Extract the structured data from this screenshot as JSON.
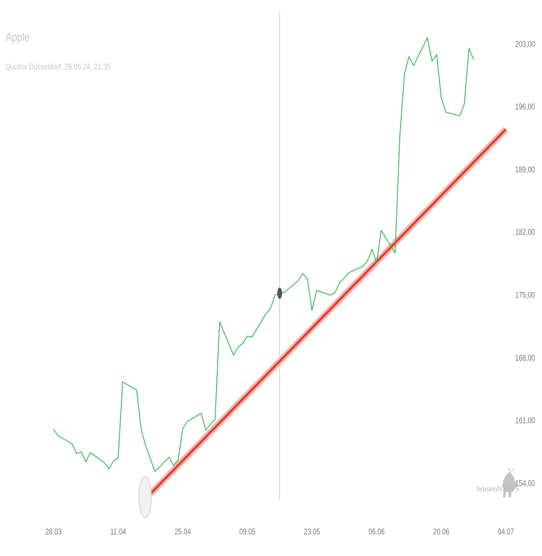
{
  "header": {
    "title": "Apple",
    "subtitle": "Quotrix Düsseldorf, 26.06.24, 21:35"
  },
  "logo": {
    "text": "börsenNEWS",
    "icon": "bull-icon"
  },
  "colors": {
    "price_line": "#2db34a",
    "trend_line": "#e8352a",
    "trend_glow": "#f8b4ae",
    "crosshair": "#cccccc",
    "axis_text": "#777777"
  },
  "chart_data": {
    "type": "line",
    "title": "Apple",
    "x_ticks": [
      "28.03",
      "11.04",
      "25.04",
      "09.05",
      "23.05",
      "06.06",
      "20.06",
      "04.07"
    ],
    "y_ticks": [
      "154,00",
      "161,00",
      "168,00",
      "175,00",
      "182,00",
      "189,00",
      "196,00",
      "203,00"
    ],
    "ylim": [
      150.3,
      206.6
    ],
    "xlim": [
      "2024-03-28",
      "2024-07-04"
    ],
    "series": [
      {
        "values": [
          [
            "2024-03-28",
            160.0
          ],
          [
            "2024-03-29",
            159.3
          ],
          [
            "2024-04-01",
            158.4
          ],
          [
            "2024-04-02",
            157.3
          ],
          [
            "2024-04-03",
            157.5
          ],
          [
            "2024-04-04",
            156.4
          ],
          [
            "2024-04-05",
            157.4
          ],
          [
            "2024-04-08",
            156.3
          ],
          [
            "2024-04-09",
            155.6
          ],
          [
            "2024-04-10",
            156.5
          ],
          [
            "2024-04-11",
            156.8
          ],
          [
            "2024-04-12",
            165.3
          ],
          [
            "2024-04-15",
            164.4
          ],
          [
            "2024-04-16",
            160.0
          ],
          [
            "2024-04-17",
            158.1
          ],
          [
            "2024-04-18",
            156.7
          ],
          [
            "2024-04-19",
            155.3
          ],
          [
            "2024-04-22",
            156.9
          ],
          [
            "2024-04-23",
            156.0
          ],
          [
            "2024-04-24",
            156.6
          ],
          [
            "2024-04-25",
            160.1
          ],
          [
            "2024-04-26",
            160.9
          ],
          [
            "2024-04-29",
            161.8
          ],
          [
            "2024-04-30",
            159.9
          ],
          [
            "2024-05-01",
            160.6
          ],
          [
            "2024-05-02",
            161.1
          ],
          [
            "2024-05-03",
            172.0
          ],
          [
            "2024-05-06",
            168.3
          ],
          [
            "2024-05-07",
            169.2
          ],
          [
            "2024-05-08",
            169.6
          ],
          [
            "2024-05-09",
            170.4
          ],
          [
            "2024-05-10",
            170.3
          ],
          [
            "2024-05-13",
            172.9
          ],
          [
            "2024-05-14",
            173.5
          ],
          [
            "2024-05-15",
            175.0
          ],
          [
            "2024-05-16",
            175.2
          ],
          [
            "2024-05-17",
            175.3
          ],
          [
            "2024-05-20",
            176.6
          ],
          [
            "2024-05-21",
            177.4
          ],
          [
            "2024-05-22",
            176.8
          ],
          [
            "2024-05-23",
            173.3
          ],
          [
            "2024-05-24",
            175.5
          ],
          [
            "2024-05-27",
            175.0
          ],
          [
            "2024-05-28",
            175.3
          ],
          [
            "2024-05-29",
            176.4
          ],
          [
            "2024-05-30",
            176.9
          ],
          [
            "2024-05-31",
            177.5
          ],
          [
            "2024-06-03",
            178.2
          ],
          [
            "2024-06-04",
            178.8
          ],
          [
            "2024-06-05",
            180.1
          ],
          [
            "2024-06-06",
            178.6
          ],
          [
            "2024-06-07",
            182.2
          ],
          [
            "2024-06-10",
            179.7
          ],
          [
            "2024-06-11",
            192.5
          ],
          [
            "2024-06-12",
            199.6
          ],
          [
            "2024-06-13",
            201.6
          ],
          [
            "2024-06-14",
            200.6
          ],
          [
            "2024-06-17",
            203.7
          ],
          [
            "2024-06-18",
            201.1
          ],
          [
            "2024-06-19",
            201.8
          ],
          [
            "2024-06-20",
            197.0
          ],
          [
            "2024-06-21",
            195.4
          ],
          [
            "2024-06-24",
            195.0
          ],
          [
            "2024-06-25",
            196.3
          ],
          [
            "2024-06-26",
            202.5
          ],
          [
            "2024-06-27",
            201.3
          ]
        ]
      },
      {
        "type": "trendline",
        "values": [
          [
            "2024-04-17",
            152.3
          ],
          [
            "2024-07-04",
            193.5
          ]
        ]
      }
    ],
    "crosshair": {
      "date": "2024-05-16",
      "value": 175.2
    },
    "start_marker": {
      "date": "2024-04-17",
      "value": 152.3
    },
    "grid": false,
    "legend": "none"
  }
}
